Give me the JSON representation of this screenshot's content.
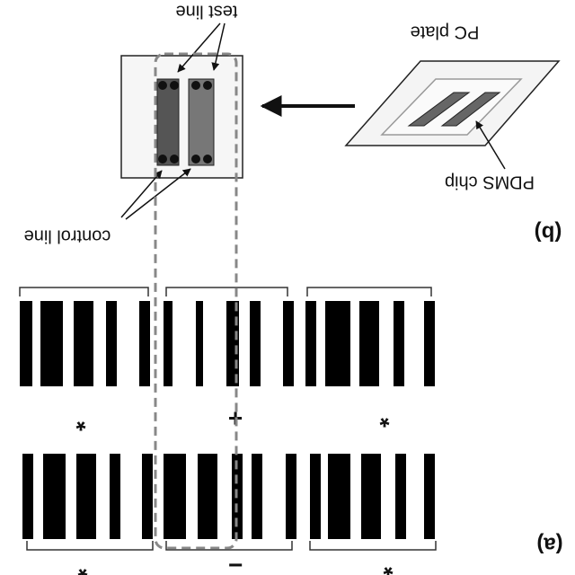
{
  "panel_b": {
    "label": "(b)",
    "test_line": "test line",
    "pc_plate": "PC plate",
    "pdms_chip": "PDMS chip",
    "control_line": "control line"
  },
  "panel_a": {
    "label": "(a)",
    "top_labels": [
      "*",
      "+",
      "*"
    ],
    "bottom_labels": [
      "*",
      "−",
      "*"
    ]
  }
}
